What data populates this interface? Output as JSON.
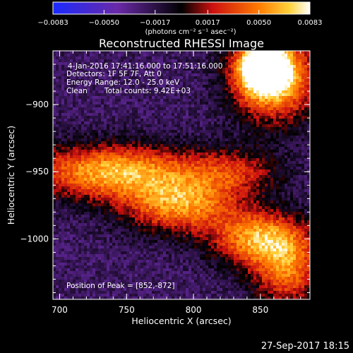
{
  "chart_data": {
    "type": "heatmap",
    "title": "Reconstructed RHESSI Image",
    "xlabel": "Heliocentric X (arcsec)",
    "ylabel": "Heliocentric Y (arcsec)",
    "xlim": [
      695,
      887
    ],
    "ylim": [
      -1045,
      -860
    ],
    "x_ticks": [
      700,
      750,
      800,
      850
    ],
    "y_ticks": [
      -900,
      -950,
      -1000
    ],
    "x_tick_labels": [
      "700",
      "750",
      "800",
      "850"
    ],
    "y_tick_labels": [
      "−900",
      "−950",
      "−1000"
    ],
    "colorbar": {
      "min": -0.0083,
      "max": 0.0083,
      "ticks": [
        -0.0083,
        -0.005,
        -0.0017,
        0.0017,
        0.005,
        0.0083
      ],
      "tick_labels": [
        "−0.0083",
        "−0.0050",
        "−0.0017",
        "0.0017",
        "0.0050",
        "0.0083"
      ],
      "unit_label": "(photons cm⁻² s⁻¹ asec⁻²)",
      "colormap": "blue-purple-black-red-yellow-white"
    },
    "features": [
      {
        "x": 860,
        "y": -880,
        "level": 0.85,
        "sx": 22,
        "sy": 22
      },
      {
        "x": 852,
        "y": -872,
        "level": 1.0,
        "sx": 12,
        "sy": 12
      },
      {
        "x": 740,
        "y": -950,
        "level": 0.75,
        "sx": 45,
        "sy": 14
      },
      {
        "x": 790,
        "y": -975,
        "level": 0.65,
        "sx": 30,
        "sy": 14
      },
      {
        "x": 850,
        "y": -1000,
        "level": 0.7,
        "sx": 25,
        "sy": 14
      },
      {
        "x": 870,
        "y": -1025,
        "level": 0.55,
        "sx": 18,
        "sy": 18
      },
      {
        "x": 830,
        "y": -950,
        "level": 0.35,
        "sx": 25,
        "sy": 12
      }
    ],
    "peak": {
      "x": 852,
      "y": -872
    }
  },
  "annotations": {
    "time_range": "4-Jan-2016 17:41:16.000 to 17:51:16.000",
    "detectors": "Detectors: 1F 5F 7F, Att 0",
    "energy_range": "Energy Range: 12.0 - 25.0 keV",
    "algorithm": "Clean",
    "total_counts": "Total counts: 9.42E+03",
    "peak_position": "Position of Peak = [852,-872]"
  },
  "footer": {
    "timestamp": "27-Sep-2017 18:15"
  }
}
